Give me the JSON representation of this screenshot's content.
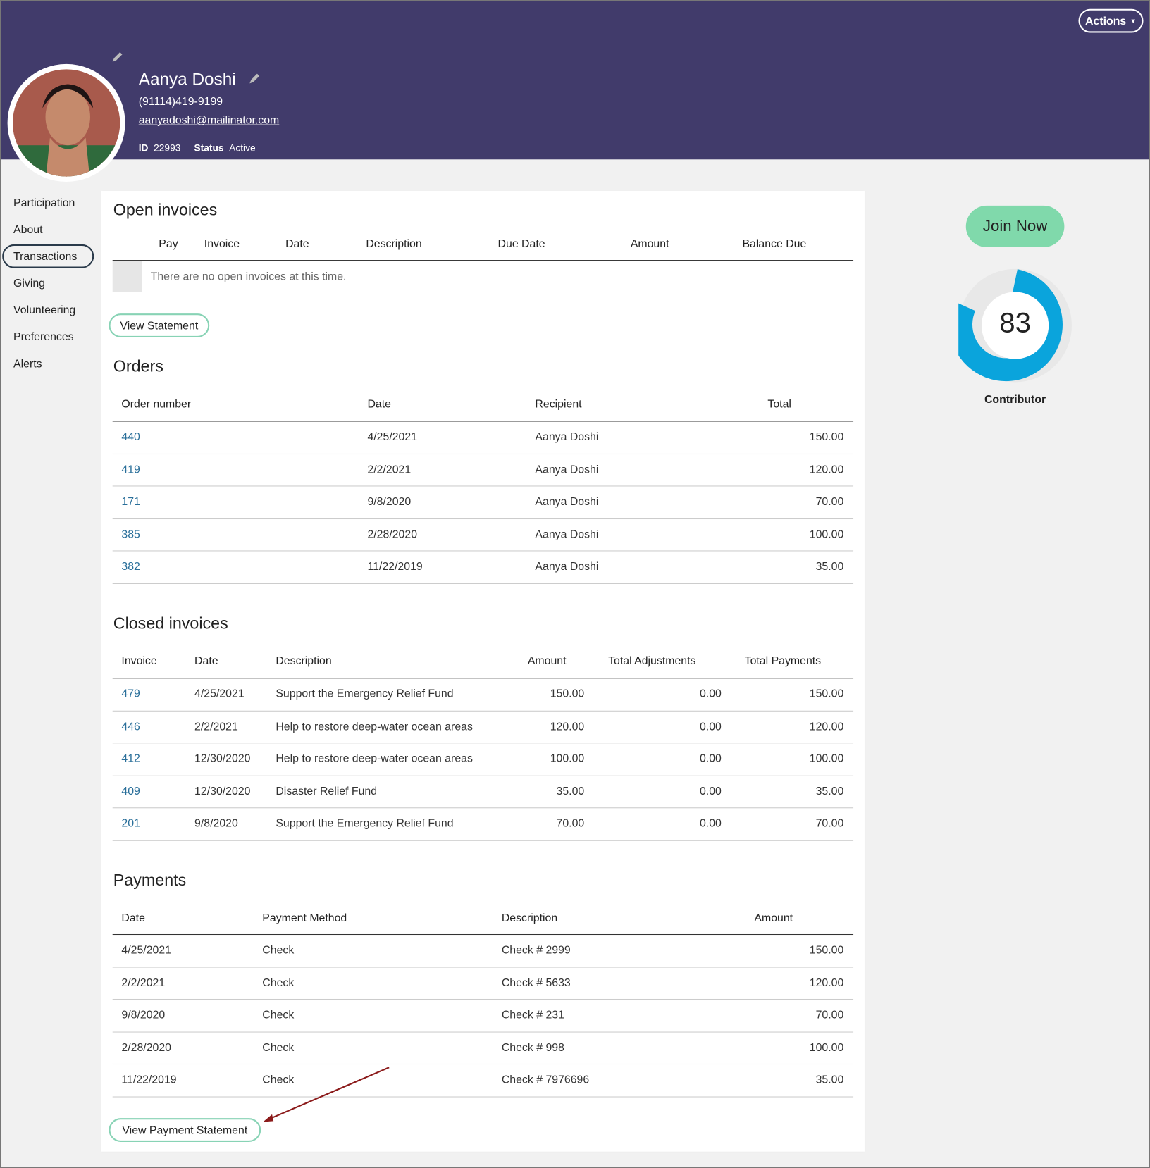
{
  "header": {
    "actions": "Actions",
    "name": "Aanya Doshi",
    "phone": "(91114)419-9199",
    "email": "aanyadoshi@mailinator.com",
    "id_label": "ID",
    "id_value": "22993",
    "status_label": "Status",
    "status_value": "Active"
  },
  "nav": [
    "Participation",
    "About",
    "Transactions",
    "Giving",
    "Volunteering",
    "Preferences",
    "Alerts"
  ],
  "open_invoices": {
    "title": "Open invoices",
    "columns": [
      "Pay",
      "Invoice",
      "Date",
      "Description",
      "Due Date",
      "Amount",
      "Balance Due"
    ],
    "empty": "There are no open invoices at this time.",
    "button": "View Statement"
  },
  "orders": {
    "title": "Orders",
    "columns": [
      "Order number",
      "Date",
      "Recipient",
      "Total"
    ],
    "rows": [
      [
        "440",
        "4/25/2021",
        "Aanya Doshi",
        "150.00"
      ],
      [
        "419",
        "2/2/2021",
        "Aanya Doshi",
        "120.00"
      ],
      [
        "171",
        "9/8/2020",
        "Aanya Doshi",
        "70.00"
      ],
      [
        "385",
        "2/28/2020",
        "Aanya Doshi",
        "100.00"
      ],
      [
        "382",
        "11/22/2019",
        "Aanya Doshi",
        "35.00"
      ]
    ]
  },
  "closed_invoices": {
    "title": "Closed invoices",
    "columns": [
      "Invoice",
      "Date",
      "Description",
      "Amount",
      "Total Adjustments",
      "Total Payments"
    ],
    "rows": [
      [
        "479",
        "4/25/2021",
        "Support the Emergency Relief Fund",
        "150.00",
        "0.00",
        "150.00"
      ],
      [
        "446",
        "2/2/2021",
        "Help to restore deep-water ocean areas",
        "120.00",
        "0.00",
        "120.00"
      ],
      [
        "412",
        "12/30/2020",
        "Help to restore deep-water ocean areas",
        "100.00",
        "0.00",
        "100.00"
      ],
      [
        "409",
        "12/30/2020",
        "Disaster Relief Fund",
        "35.00",
        "0.00",
        "35.00"
      ],
      [
        "201",
        "9/8/2020",
        "Support the Emergency Relief Fund",
        "70.00",
        "0.00",
        "70.00"
      ]
    ]
  },
  "payments": {
    "title": "Payments",
    "columns": [
      "Date",
      "Payment Method",
      "Description",
      "Amount"
    ],
    "rows": [
      [
        "4/25/2021",
        "Check",
        "Check # 2999",
        "150.00"
      ],
      [
        "2/2/2021",
        "Check",
        "Check # 5633",
        "120.00"
      ],
      [
        "9/8/2020",
        "Check",
        "Check # 231",
        "70.00"
      ],
      [
        "2/28/2020",
        "Check",
        "Check # 998",
        "100.00"
      ],
      [
        "11/22/2019",
        "Check",
        "Check # 7976696",
        "35.00"
      ]
    ],
    "button": "View Payment Statement"
  },
  "sidebar": {
    "join": "Join Now",
    "score": "83",
    "level": "Contributor"
  }
}
